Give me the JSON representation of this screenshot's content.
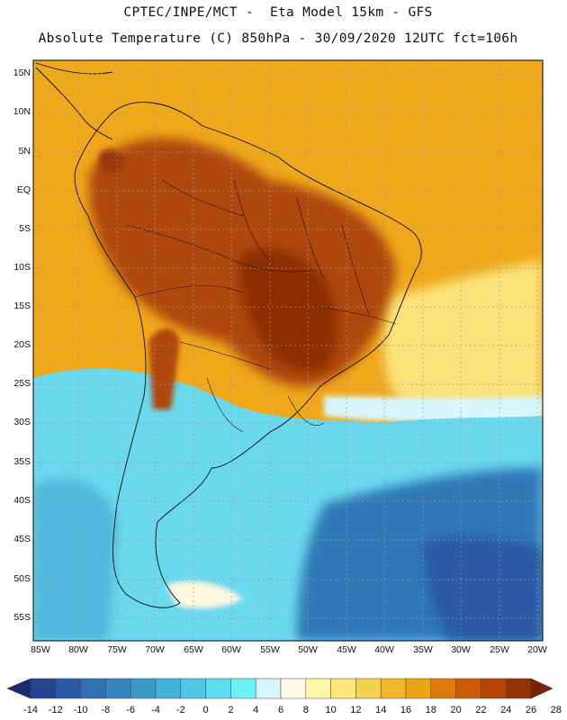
{
  "header": {
    "line1": "CPTEC/INPE/MCT -  Eta Model 15km - GFS",
    "line2": "Absolute Temperature (C) 850hPa - 30/09/2020 12UTC fct=106h"
  },
  "axes": {
    "lat_labels": [
      "15N",
      "10N",
      "5N",
      "EQ",
      "5S",
      "10S",
      "15S",
      "20S",
      "25S",
      "30S",
      "35S",
      "40S",
      "45S",
      "50S",
      "55S"
    ],
    "lon_labels": [
      "85W",
      "80W",
      "75W",
      "70W",
      "65W",
      "60W",
      "55W",
      "50W",
      "45W",
      "40W",
      "35W",
      "30W",
      "25W",
      "20W"
    ]
  },
  "colorbar": {
    "labels": [
      "-14",
      "-12",
      "-10",
      "-8",
      "-6",
      "-4",
      "-2",
      "0",
      "2",
      "4",
      "6",
      "8",
      "10",
      "12",
      "14",
      "16",
      "18",
      "20",
      "22",
      "24",
      "26",
      "28"
    ],
    "colors": [
      "#1a2a6c",
      "#23448e",
      "#2a5aa6",
      "#2f71b4",
      "#3585c0",
      "#3a9bcb",
      "#42b3da",
      "#4fc8e6",
      "#5fdcef",
      "#6bf2f7",
      "#d6f6fb",
      "#fffbe8",
      "#fff7a6",
      "#ffe879",
      "#f8d04f",
      "#f3b62a",
      "#eea312",
      "#e07a0a",
      "#cc5a06",
      "#b54604",
      "#963304",
      "#7a2202"
    ]
  },
  "regions": {
    "field": "850hPa temperature field",
    "colors": {
      "north_ocean": "#f0a81a",
      "warm_core": "#b0460a",
      "hot_core": "#8c2d05",
      "south_atlantic_cold": "#2f78b8",
      "andes_cool": "#6ad9ee",
      "subtropical_yellow": "#fbe37a"
    }
  }
}
